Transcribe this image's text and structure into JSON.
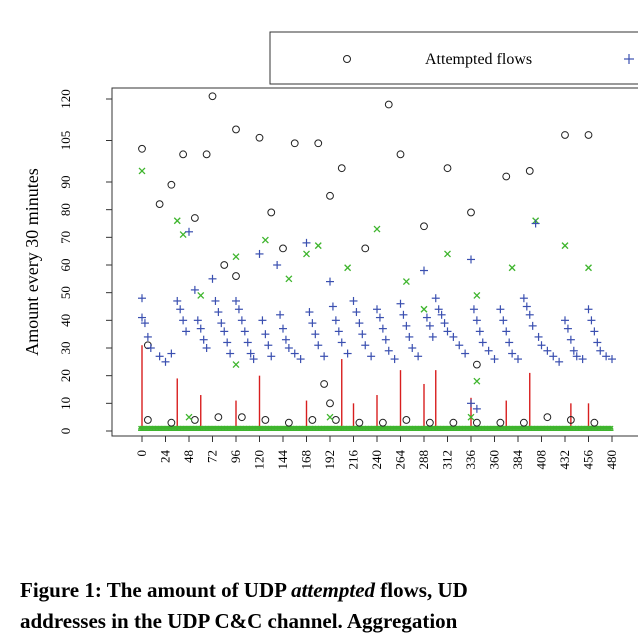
{
  "chart_data": {
    "type": "scatter",
    "ylabel": "Amount every 30 minutes",
    "xlabel": "",
    "ylim": [
      -2,
      123
    ],
    "xlim": [
      -5,
      480
    ],
    "yticks": [
      0,
      10,
      20,
      30,
      40,
      50,
      60,
      70,
      80,
      90,
      105,
      120
    ],
    "xticks": [
      0,
      24,
      48,
      72,
      96,
      120,
      144,
      168,
      192,
      216,
      240,
      264,
      288,
      312,
      336,
      360,
      384,
      408,
      432,
      456,
      480
    ],
    "legend": {
      "position": "top",
      "entries": [
        {
          "marker": "circle",
          "label": "Attempted flows"
        },
        {
          "marker": "plus",
          "label": ""
        }
      ]
    },
    "colors": {
      "circle": "#222222",
      "plus": "#3a4fb0",
      "cross": "#3fb52e",
      "stem": "#d81e1e"
    },
    "series": [
      {
        "marker": "circle",
        "points": [
          [
            0,
            102
          ],
          [
            6,
            31
          ],
          [
            18,
            82
          ],
          [
            30,
            89
          ],
          [
            42,
            100
          ],
          [
            54,
            77
          ],
          [
            66,
            100
          ],
          [
            72,
            121
          ],
          [
            84,
            60
          ],
          [
            96,
            109
          ],
          [
            120,
            106
          ],
          [
            132,
            79
          ],
          [
            144,
            66
          ],
          [
            156,
            104
          ],
          [
            180,
            104
          ],
          [
            192,
            85
          ],
          [
            204,
            95
          ],
          [
            228,
            66
          ],
          [
            252,
            118
          ],
          [
            264,
            100
          ],
          [
            288,
            74
          ],
          [
            312,
            95
          ],
          [
            336,
            79
          ],
          [
            372,
            92
          ],
          [
            396,
            94
          ],
          [
            432,
            107
          ],
          [
            456,
            107
          ],
          [
            6,
            4
          ],
          [
            30,
            3
          ],
          [
            54,
            4
          ],
          [
            78,
            5
          ],
          [
            102,
            5
          ],
          [
            126,
            4
          ],
          [
            150,
            3
          ],
          [
            174,
            4
          ],
          [
            198,
            4
          ],
          [
            222,
            3
          ],
          [
            246,
            3
          ],
          [
            270,
            4
          ],
          [
            294,
            3
          ],
          [
            318,
            3
          ],
          [
            342,
            3
          ],
          [
            366,
            3
          ],
          [
            390,
            3
          ],
          [
            414,
            5
          ],
          [
            438,
            4
          ],
          [
            462,
            3
          ],
          [
            96,
            56
          ],
          [
            186,
            17
          ],
          [
            192,
            10
          ],
          [
            342,
            24
          ]
        ]
      },
      {
        "marker": "cross",
        "points": [
          [
            0,
            94
          ],
          [
            36,
            76
          ],
          [
            42,
            71
          ],
          [
            60,
            49
          ],
          [
            96,
            63
          ],
          [
            126,
            69
          ],
          [
            150,
            55
          ],
          [
            168,
            64
          ],
          [
            180,
            67
          ],
          [
            210,
            59
          ],
          [
            240,
            73
          ],
          [
            270,
            54
          ],
          [
            288,
            44
          ],
          [
            312,
            64
          ],
          [
            342,
            49
          ],
          [
            378,
            59
          ],
          [
            402,
            76
          ],
          [
            432,
            67
          ],
          [
            456,
            59
          ],
          [
            342,
            18
          ],
          [
            96,
            24
          ],
          [
            48,
            5
          ],
          [
            192,
            5
          ],
          [
            336,
            5
          ]
        ]
      },
      {
        "marker": "plus",
        "label": "",
        "points": [
          [
            0,
            48
          ],
          [
            0,
            41
          ],
          [
            3,
            39
          ],
          [
            6,
            34
          ],
          [
            9,
            30
          ],
          [
            18,
            27
          ],
          [
            24,
            25
          ],
          [
            30,
            28
          ],
          [
            36,
            47
          ],
          [
            39,
            44
          ],
          [
            42,
            40
          ],
          [
            45,
            36
          ],
          [
            48,
            72
          ],
          [
            54,
            51
          ],
          [
            57,
            40
          ],
          [
            60,
            37
          ],
          [
            63,
            33
          ],
          [
            66,
            30
          ],
          [
            72,
            55
          ],
          [
            75,
            47
          ],
          [
            78,
            43
          ],
          [
            81,
            39
          ],
          [
            84,
            36
          ],
          [
            87,
            32
          ],
          [
            90,
            28
          ],
          [
            96,
            47
          ],
          [
            99,
            44
          ],
          [
            102,
            40
          ],
          [
            105,
            36
          ],
          [
            108,
            32
          ],
          [
            111,
            28
          ],
          [
            114,
            26
          ],
          [
            120,
            64
          ],
          [
            123,
            40
          ],
          [
            126,
            35
          ],
          [
            129,
            31
          ],
          [
            132,
            27
          ],
          [
            138,
            60
          ],
          [
            141,
            42
          ],
          [
            144,
            37
          ],
          [
            147,
            33
          ],
          [
            150,
            30
          ],
          [
            156,
            28
          ],
          [
            162,
            26
          ],
          [
            168,
            68
          ],
          [
            171,
            43
          ],
          [
            174,
            39
          ],
          [
            177,
            35
          ],
          [
            180,
            31
          ],
          [
            186,
            27
          ],
          [
            192,
            54
          ],
          [
            195,
            45
          ],
          [
            198,
            40
          ],
          [
            201,
            36
          ],
          [
            204,
            32
          ],
          [
            210,
            28
          ],
          [
            216,
            47
          ],
          [
            219,
            43
          ],
          [
            222,
            39
          ],
          [
            225,
            35
          ],
          [
            228,
            31
          ],
          [
            234,
            27
          ],
          [
            240,
            44
          ],
          [
            243,
            41
          ],
          [
            246,
            37
          ],
          [
            249,
            33
          ],
          [
            252,
            29
          ],
          [
            258,
            26
          ],
          [
            264,
            46
          ],
          [
            267,
            42
          ],
          [
            270,
            38
          ],
          [
            273,
            34
          ],
          [
            276,
            30
          ],
          [
            282,
            27
          ],
          [
            288,
            58
          ],
          [
            291,
            41
          ],
          [
            294,
            38
          ],
          [
            297,
            34
          ],
          [
            300,
            48
          ],
          [
            303,
            44
          ],
          [
            306,
            42
          ],
          [
            309,
            39
          ],
          [
            312,
            36
          ],
          [
            318,
            34
          ],
          [
            324,
            31
          ],
          [
            330,
            28
          ],
          [
            336,
            62
          ],
          [
            339,
            44
          ],
          [
            342,
            40
          ],
          [
            345,
            36
          ],
          [
            348,
            32
          ],
          [
            354,
            29
          ],
          [
            360,
            26
          ],
          [
            366,
            44
          ],
          [
            369,
            40
          ],
          [
            372,
            36
          ],
          [
            375,
            32
          ],
          [
            378,
            28
          ],
          [
            384,
            26
          ],
          [
            390,
            48
          ],
          [
            393,
            45
          ],
          [
            396,
            42
          ],
          [
            399,
            38
          ],
          [
            402,
            75
          ],
          [
            405,
            34
          ],
          [
            408,
            31
          ],
          [
            414,
            29
          ],
          [
            420,
            27
          ],
          [
            426,
            25
          ],
          [
            432,
            40
          ],
          [
            435,
            37
          ],
          [
            438,
            33
          ],
          [
            441,
            29
          ],
          [
            444,
            27
          ],
          [
            450,
            26
          ],
          [
            456,
            44
          ],
          [
            459,
            40
          ],
          [
            462,
            36
          ],
          [
            465,
            32
          ],
          [
            468,
            29
          ],
          [
            474,
            27
          ],
          [
            480,
            26
          ],
          [
            342,
            8
          ],
          [
            336,
            10
          ]
        ]
      }
    ],
    "stems": [
      [
        0,
        31
      ],
      [
        36,
        19
      ],
      [
        60,
        13
      ],
      [
        96,
        11
      ],
      [
        120,
        20
      ],
      [
        168,
        11
      ],
      [
        204,
        26
      ],
      [
        216,
        10
      ],
      [
        240,
        13
      ],
      [
        264,
        22
      ],
      [
        288,
        17
      ],
      [
        300,
        22
      ],
      [
        336,
        12
      ],
      [
        372,
        11
      ],
      [
        396,
        21
      ],
      [
        438,
        10
      ],
      [
        456,
        10
      ]
    ]
  },
  "caption": {
    "line1_before": "Figure 1: The amount of UDP ",
    "line1_emph": "attempted",
    "line1_after": " flows, UD",
    "line2": "addresses in the UDP C&C channel. Aggregation"
  }
}
